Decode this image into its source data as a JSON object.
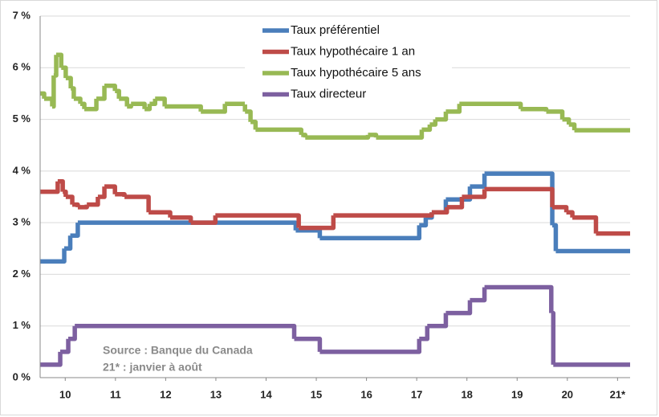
{
  "chart_data": {
    "type": "line",
    "drawstyle": "steps-post",
    "xlim": [
      10,
      21.75
    ],
    "xticks": [
      {
        "value": 10.5,
        "label": "10"
      },
      {
        "value": 11.5,
        "label": "11"
      },
      {
        "value": 12.5,
        "label": "12"
      },
      {
        "value": 13.5,
        "label": "13"
      },
      {
        "value": 14.5,
        "label": "14"
      },
      {
        "value": 15.5,
        "label": "15"
      },
      {
        "value": 16.5,
        "label": "16"
      },
      {
        "value": 17.5,
        "label": "17"
      },
      {
        "value": 18.5,
        "label": "18"
      },
      {
        "value": 19.5,
        "label": "19"
      },
      {
        "value": 20.5,
        "label": "20"
      },
      {
        "value": 21.5,
        "label": "21*"
      }
    ],
    "ylim": [
      0,
      7
    ],
    "yticks": [
      {
        "value": 0,
        "label": "0 %"
      },
      {
        "value": 1,
        "label": "1 %"
      },
      {
        "value": 2,
        "label": "2 %"
      },
      {
        "value": 3,
        "label": "3 %"
      },
      {
        "value": 4,
        "label": "4 %"
      },
      {
        "value": 5,
        "label": "5 %"
      },
      {
        "value": 6,
        "label": "6 %"
      },
      {
        "value": 7,
        "label": "7 %"
      }
    ],
    "grid": true,
    "legend": "upper center",
    "annotations": [
      "Source : Banque du Canada",
      "21* :  janvier à août"
    ],
    "series": [
      {
        "name": "Taux préférentiel",
        "color": "#4a7ebb",
        "x": [
          10.0,
          10.48,
          10.6,
          10.75,
          15.09,
          15.57,
          17.55,
          17.68,
          17.8,
          18.08,
          18.56,
          18.85,
          20.2,
          20.27,
          21.75
        ],
        "values": [
          2.25,
          2.5,
          2.75,
          3.0,
          2.85,
          2.7,
          2.95,
          3.1,
          3.2,
          3.45,
          3.7,
          3.95,
          2.95,
          2.45,
          2.45
        ]
      },
      {
        "name": "Taux hypothécaire 1 an",
        "color": "#be4b48",
        "x": [
          10.0,
          10.35,
          10.45,
          10.51,
          10.64,
          10.75,
          10.93,
          11.15,
          11.28,
          11.49,
          11.68,
          12.16,
          12.59,
          13.0,
          13.49,
          15.15,
          15.84,
          17.8,
          18.1,
          18.4,
          18.85,
          20.2,
          20.48,
          20.6,
          21.07,
          21.75
        ],
        "values": [
          3.6,
          3.8,
          3.6,
          3.5,
          3.35,
          3.3,
          3.35,
          3.5,
          3.7,
          3.55,
          3.5,
          3.2,
          3.1,
          3.0,
          3.14,
          2.9,
          3.14,
          3.2,
          3.3,
          3.5,
          3.65,
          3.3,
          3.2,
          3.1,
          2.79,
          2.79
        ]
      },
      {
        "name": "Taux hypothécaire 5 ans",
        "color": "#98b954",
        "x": [
          10.0,
          10.08,
          10.24,
          10.27,
          10.32,
          10.42,
          10.51,
          10.61,
          10.67,
          10.8,
          10.88,
          11.12,
          11.28,
          11.49,
          11.57,
          11.73,
          11.81,
          12.08,
          12.18,
          12.29,
          12.48,
          13.2,
          13.68,
          14.08,
          14.19,
          14.29,
          15.2,
          15.28,
          16.53,
          16.69,
          17.6,
          17.76,
          17.87,
          18.08,
          18.35,
          19.57,
          20.08,
          20.4,
          20.53,
          20.64,
          21.75
        ],
        "values": [
          5.5,
          5.4,
          5.25,
          5.85,
          6.25,
          6.0,
          5.8,
          5.6,
          5.4,
          5.3,
          5.2,
          5.4,
          5.65,
          5.55,
          5.4,
          5.25,
          5.3,
          5.2,
          5.3,
          5.4,
          5.25,
          5.15,
          5.3,
          5.15,
          4.95,
          4.8,
          4.7,
          4.65,
          4.7,
          4.65,
          4.8,
          4.9,
          5.0,
          5.15,
          5.3,
          5.2,
          5.15,
          5.0,
          4.9,
          4.79,
          4.79
        ]
      },
      {
        "name": "Taux directeur",
        "color": "#7d60a0",
        "x": [
          10.0,
          10.4,
          10.56,
          10.69,
          15.06,
          15.57,
          17.55,
          17.71,
          18.08,
          18.56,
          18.85,
          20.18,
          20.22,
          21.75
        ],
        "values": [
          0.25,
          0.5,
          0.75,
          1.0,
          0.75,
          0.5,
          0.75,
          1.0,
          1.25,
          1.5,
          1.75,
          1.25,
          0.25,
          0.25
        ]
      }
    ]
  }
}
